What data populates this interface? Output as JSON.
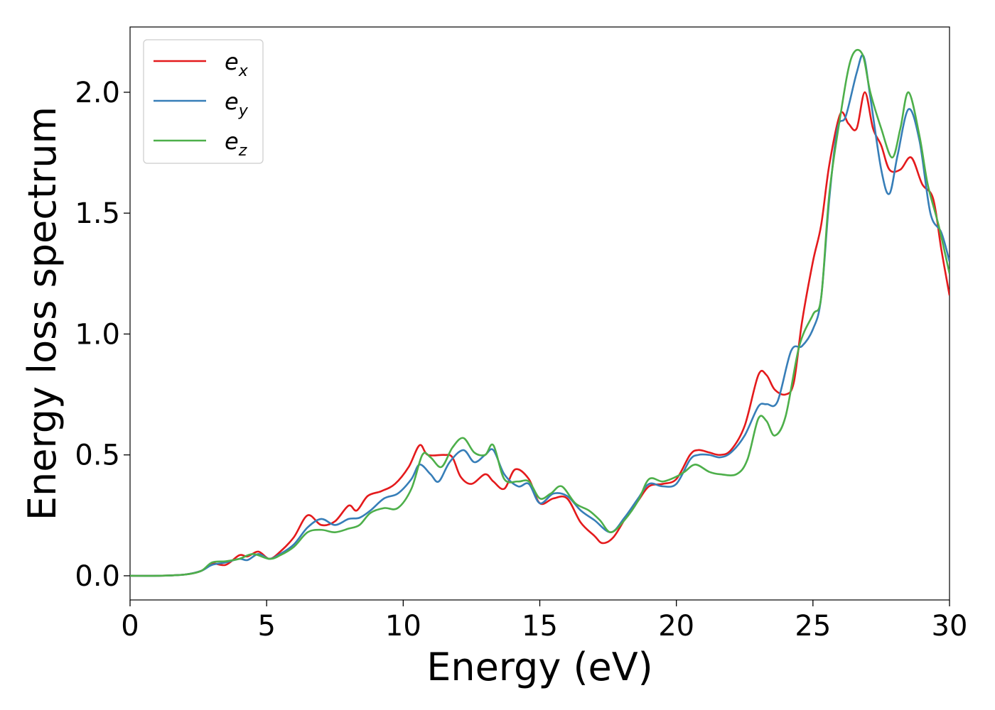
{
  "chart_data": {
    "type": "line",
    "title": "",
    "xlabel": "Energy (eV)",
    "ylabel": "Energy loss spectrum",
    "xlim": [
      0,
      30
    ],
    "ylim": [
      -0.1,
      2.27
    ],
    "xticks": [
      0,
      5,
      10,
      15,
      20,
      25,
      30
    ],
    "xtick_labels": [
      "0",
      "5",
      "10",
      "15",
      "20",
      "25",
      "30"
    ],
    "yticks": [
      0.0,
      0.5,
      1.0,
      1.5,
      2.0
    ],
    "ytick_labels": [
      "0.0",
      "0.5",
      "1.0",
      "1.5",
      "2.0"
    ],
    "grid": false,
    "legend_position": "top-left",
    "series": [
      {
        "name": "e_x",
        "legend_base": "e",
        "legend_sub": "x",
        "color": "#e41a1c",
        "points": [
          [
            0,
            0.0
          ],
          [
            1,
            0.0
          ],
          [
            2,
            0.005
          ],
          [
            2.6,
            0.02
          ],
          [
            3,
            0.05
          ],
          [
            3.5,
            0.045
          ],
          [
            4,
            0.085
          ],
          [
            4.3,
            0.08
          ],
          [
            4.7,
            0.1
          ],
          [
            5.1,
            0.07
          ],
          [
            5.5,
            0.1
          ],
          [
            6,
            0.16
          ],
          [
            6.5,
            0.25
          ],
          [
            7,
            0.21
          ],
          [
            7.5,
            0.225
          ],
          [
            8,
            0.29
          ],
          [
            8.3,
            0.27
          ],
          [
            8.7,
            0.33
          ],
          [
            9.2,
            0.35
          ],
          [
            9.7,
            0.38
          ],
          [
            10.2,
            0.45
          ],
          [
            10.6,
            0.54
          ],
          [
            10.9,
            0.5
          ],
          [
            11.5,
            0.5
          ],
          [
            11.8,
            0.49
          ],
          [
            12.1,
            0.41
          ],
          [
            12.5,
            0.38
          ],
          [
            13,
            0.42
          ],
          [
            13.3,
            0.39
          ],
          [
            13.7,
            0.36
          ],
          [
            14.1,
            0.44
          ],
          [
            14.6,
            0.4
          ],
          [
            15,
            0.3
          ],
          [
            15.5,
            0.32
          ],
          [
            16,
            0.32
          ],
          [
            16.5,
            0.22
          ],
          [
            17,
            0.165
          ],
          [
            17.3,
            0.135
          ],
          [
            17.7,
            0.16
          ],
          [
            18.2,
            0.25
          ],
          [
            18.6,
            0.31
          ],
          [
            19,
            0.37
          ],
          [
            19.5,
            0.38
          ],
          [
            20,
            0.4
          ],
          [
            20.5,
            0.5
          ],
          [
            20.8,
            0.52
          ],
          [
            21.2,
            0.51
          ],
          [
            21.6,
            0.5
          ],
          [
            22,
            0.52
          ],
          [
            22.5,
            0.62
          ],
          [
            23,
            0.83
          ],
          [
            23.3,
            0.83
          ],
          [
            23.6,
            0.77
          ],
          [
            24,
            0.75
          ],
          [
            24.3,
            0.8
          ],
          [
            24.6,
            1.05
          ],
          [
            25,
            1.3
          ],
          [
            25.3,
            1.45
          ],
          [
            25.6,
            1.7
          ],
          [
            26,
            1.91
          ],
          [
            26.3,
            1.87
          ],
          [
            26.6,
            1.85
          ],
          [
            26.9,
            2.0
          ],
          [
            27.2,
            1.85
          ],
          [
            27.5,
            1.78
          ],
          [
            27.8,
            1.68
          ],
          [
            28.2,
            1.68
          ],
          [
            28.6,
            1.73
          ],
          [
            29,
            1.62
          ],
          [
            29.4,
            1.56
          ],
          [
            29.7,
            1.35
          ],
          [
            30,
            1.16
          ]
        ]
      },
      {
        "name": "e_y",
        "legend_base": "e",
        "legend_sub": "y",
        "color": "#377eb8",
        "points": [
          [
            0,
            0.0
          ],
          [
            1,
            0.0
          ],
          [
            2,
            0.005
          ],
          [
            2.6,
            0.02
          ],
          [
            3,
            0.045
          ],
          [
            3.5,
            0.055
          ],
          [
            4,
            0.07
          ],
          [
            4.3,
            0.065
          ],
          [
            4.7,
            0.09
          ],
          [
            5.1,
            0.07
          ],
          [
            5.5,
            0.09
          ],
          [
            6,
            0.13
          ],
          [
            6.5,
            0.2
          ],
          [
            7,
            0.235
          ],
          [
            7.5,
            0.21
          ],
          [
            8,
            0.235
          ],
          [
            8.4,
            0.24
          ],
          [
            8.8,
            0.27
          ],
          [
            9.3,
            0.32
          ],
          [
            9.8,
            0.34
          ],
          [
            10.3,
            0.4
          ],
          [
            10.6,
            0.46
          ],
          [
            11,
            0.42
          ],
          [
            11.3,
            0.39
          ],
          [
            11.7,
            0.47
          ],
          [
            12.2,
            0.52
          ],
          [
            12.6,
            0.47
          ],
          [
            13,
            0.5
          ],
          [
            13.3,
            0.52
          ],
          [
            13.7,
            0.42
          ],
          [
            14.2,
            0.37
          ],
          [
            14.6,
            0.38
          ],
          [
            15,
            0.3
          ],
          [
            15.5,
            0.34
          ],
          [
            16,
            0.33
          ],
          [
            16.5,
            0.27
          ],
          [
            17,
            0.23
          ],
          [
            17.6,
            0.18
          ],
          [
            18.1,
            0.24
          ],
          [
            18.6,
            0.32
          ],
          [
            19,
            0.38
          ],
          [
            19.5,
            0.37
          ],
          [
            20,
            0.38
          ],
          [
            20.5,
            0.48
          ],
          [
            20.8,
            0.5
          ],
          [
            21.2,
            0.5
          ],
          [
            21.6,
            0.49
          ],
          [
            22,
            0.51
          ],
          [
            22.5,
            0.58
          ],
          [
            23,
            0.7
          ],
          [
            23.3,
            0.71
          ],
          [
            23.7,
            0.72
          ],
          [
            24.2,
            0.93
          ],
          [
            24.6,
            0.95
          ],
          [
            25,
            1.02
          ],
          [
            25.3,
            1.15
          ],
          [
            25.6,
            1.56
          ],
          [
            25.9,
            1.85
          ],
          [
            26.2,
            1.9
          ],
          [
            26.6,
            2.08
          ],
          [
            26.85,
            2.15
          ],
          [
            27.1,
            1.98
          ],
          [
            27.5,
            1.68
          ],
          [
            27.8,
            1.58
          ],
          [
            28.1,
            1.74
          ],
          [
            28.5,
            1.93
          ],
          [
            28.9,
            1.8
          ],
          [
            29.3,
            1.5
          ],
          [
            29.7,
            1.42
          ],
          [
            30,
            1.3
          ]
        ]
      },
      {
        "name": "e_z",
        "legend_base": "e",
        "legend_sub": "z",
        "color": "#4daf4a",
        "points": [
          [
            0,
            0.0
          ],
          [
            1,
            0.0
          ],
          [
            2,
            0.005
          ],
          [
            2.6,
            0.02
          ],
          [
            3,
            0.055
          ],
          [
            3.5,
            0.06
          ],
          [
            4,
            0.07
          ],
          [
            4.5,
            0.09
          ],
          [
            5.1,
            0.07
          ],
          [
            5.5,
            0.085
          ],
          [
            6,
            0.12
          ],
          [
            6.5,
            0.18
          ],
          [
            7,
            0.19
          ],
          [
            7.5,
            0.18
          ],
          [
            8,
            0.195
          ],
          [
            8.4,
            0.21
          ],
          [
            8.8,
            0.26
          ],
          [
            9.3,
            0.28
          ],
          [
            9.8,
            0.28
          ],
          [
            10.3,
            0.36
          ],
          [
            10.7,
            0.5
          ],
          [
            11,
            0.49
          ],
          [
            11.4,
            0.45
          ],
          [
            11.8,
            0.53
          ],
          [
            12.2,
            0.57
          ],
          [
            12.6,
            0.51
          ],
          [
            13,
            0.5
          ],
          [
            13.3,
            0.54
          ],
          [
            13.7,
            0.4
          ],
          [
            14.2,
            0.39
          ],
          [
            14.6,
            0.39
          ],
          [
            15,
            0.32
          ],
          [
            15.4,
            0.34
          ],
          [
            15.8,
            0.37
          ],
          [
            16.3,
            0.3
          ],
          [
            16.8,
            0.27
          ],
          [
            17.2,
            0.23
          ],
          [
            17.6,
            0.18
          ],
          [
            18.1,
            0.23
          ],
          [
            18.6,
            0.31
          ],
          [
            19,
            0.4
          ],
          [
            19.5,
            0.39
          ],
          [
            20,
            0.41
          ],
          [
            20.3,
            0.43
          ],
          [
            20.7,
            0.46
          ],
          [
            21.2,
            0.43
          ],
          [
            21.6,
            0.42
          ],
          [
            22.2,
            0.42
          ],
          [
            22.6,
            0.48
          ],
          [
            23,
            0.65
          ],
          [
            23.3,
            0.64
          ],
          [
            23.6,
            0.58
          ],
          [
            24,
            0.66
          ],
          [
            24.5,
            0.95
          ],
          [
            25,
            1.08
          ],
          [
            25.3,
            1.15
          ],
          [
            25.6,
            1.58
          ],
          [
            26,
            1.9
          ],
          [
            26.4,
            2.14
          ],
          [
            26.8,
            2.16
          ],
          [
            27.1,
            2.0
          ],
          [
            27.5,
            1.85
          ],
          [
            27.9,
            1.73
          ],
          [
            28.2,
            1.85
          ],
          [
            28.5,
            2.0
          ],
          [
            28.9,
            1.82
          ],
          [
            29.2,
            1.62
          ],
          [
            29.6,
            1.45
          ],
          [
            30,
            1.25
          ]
        ]
      }
    ]
  }
}
